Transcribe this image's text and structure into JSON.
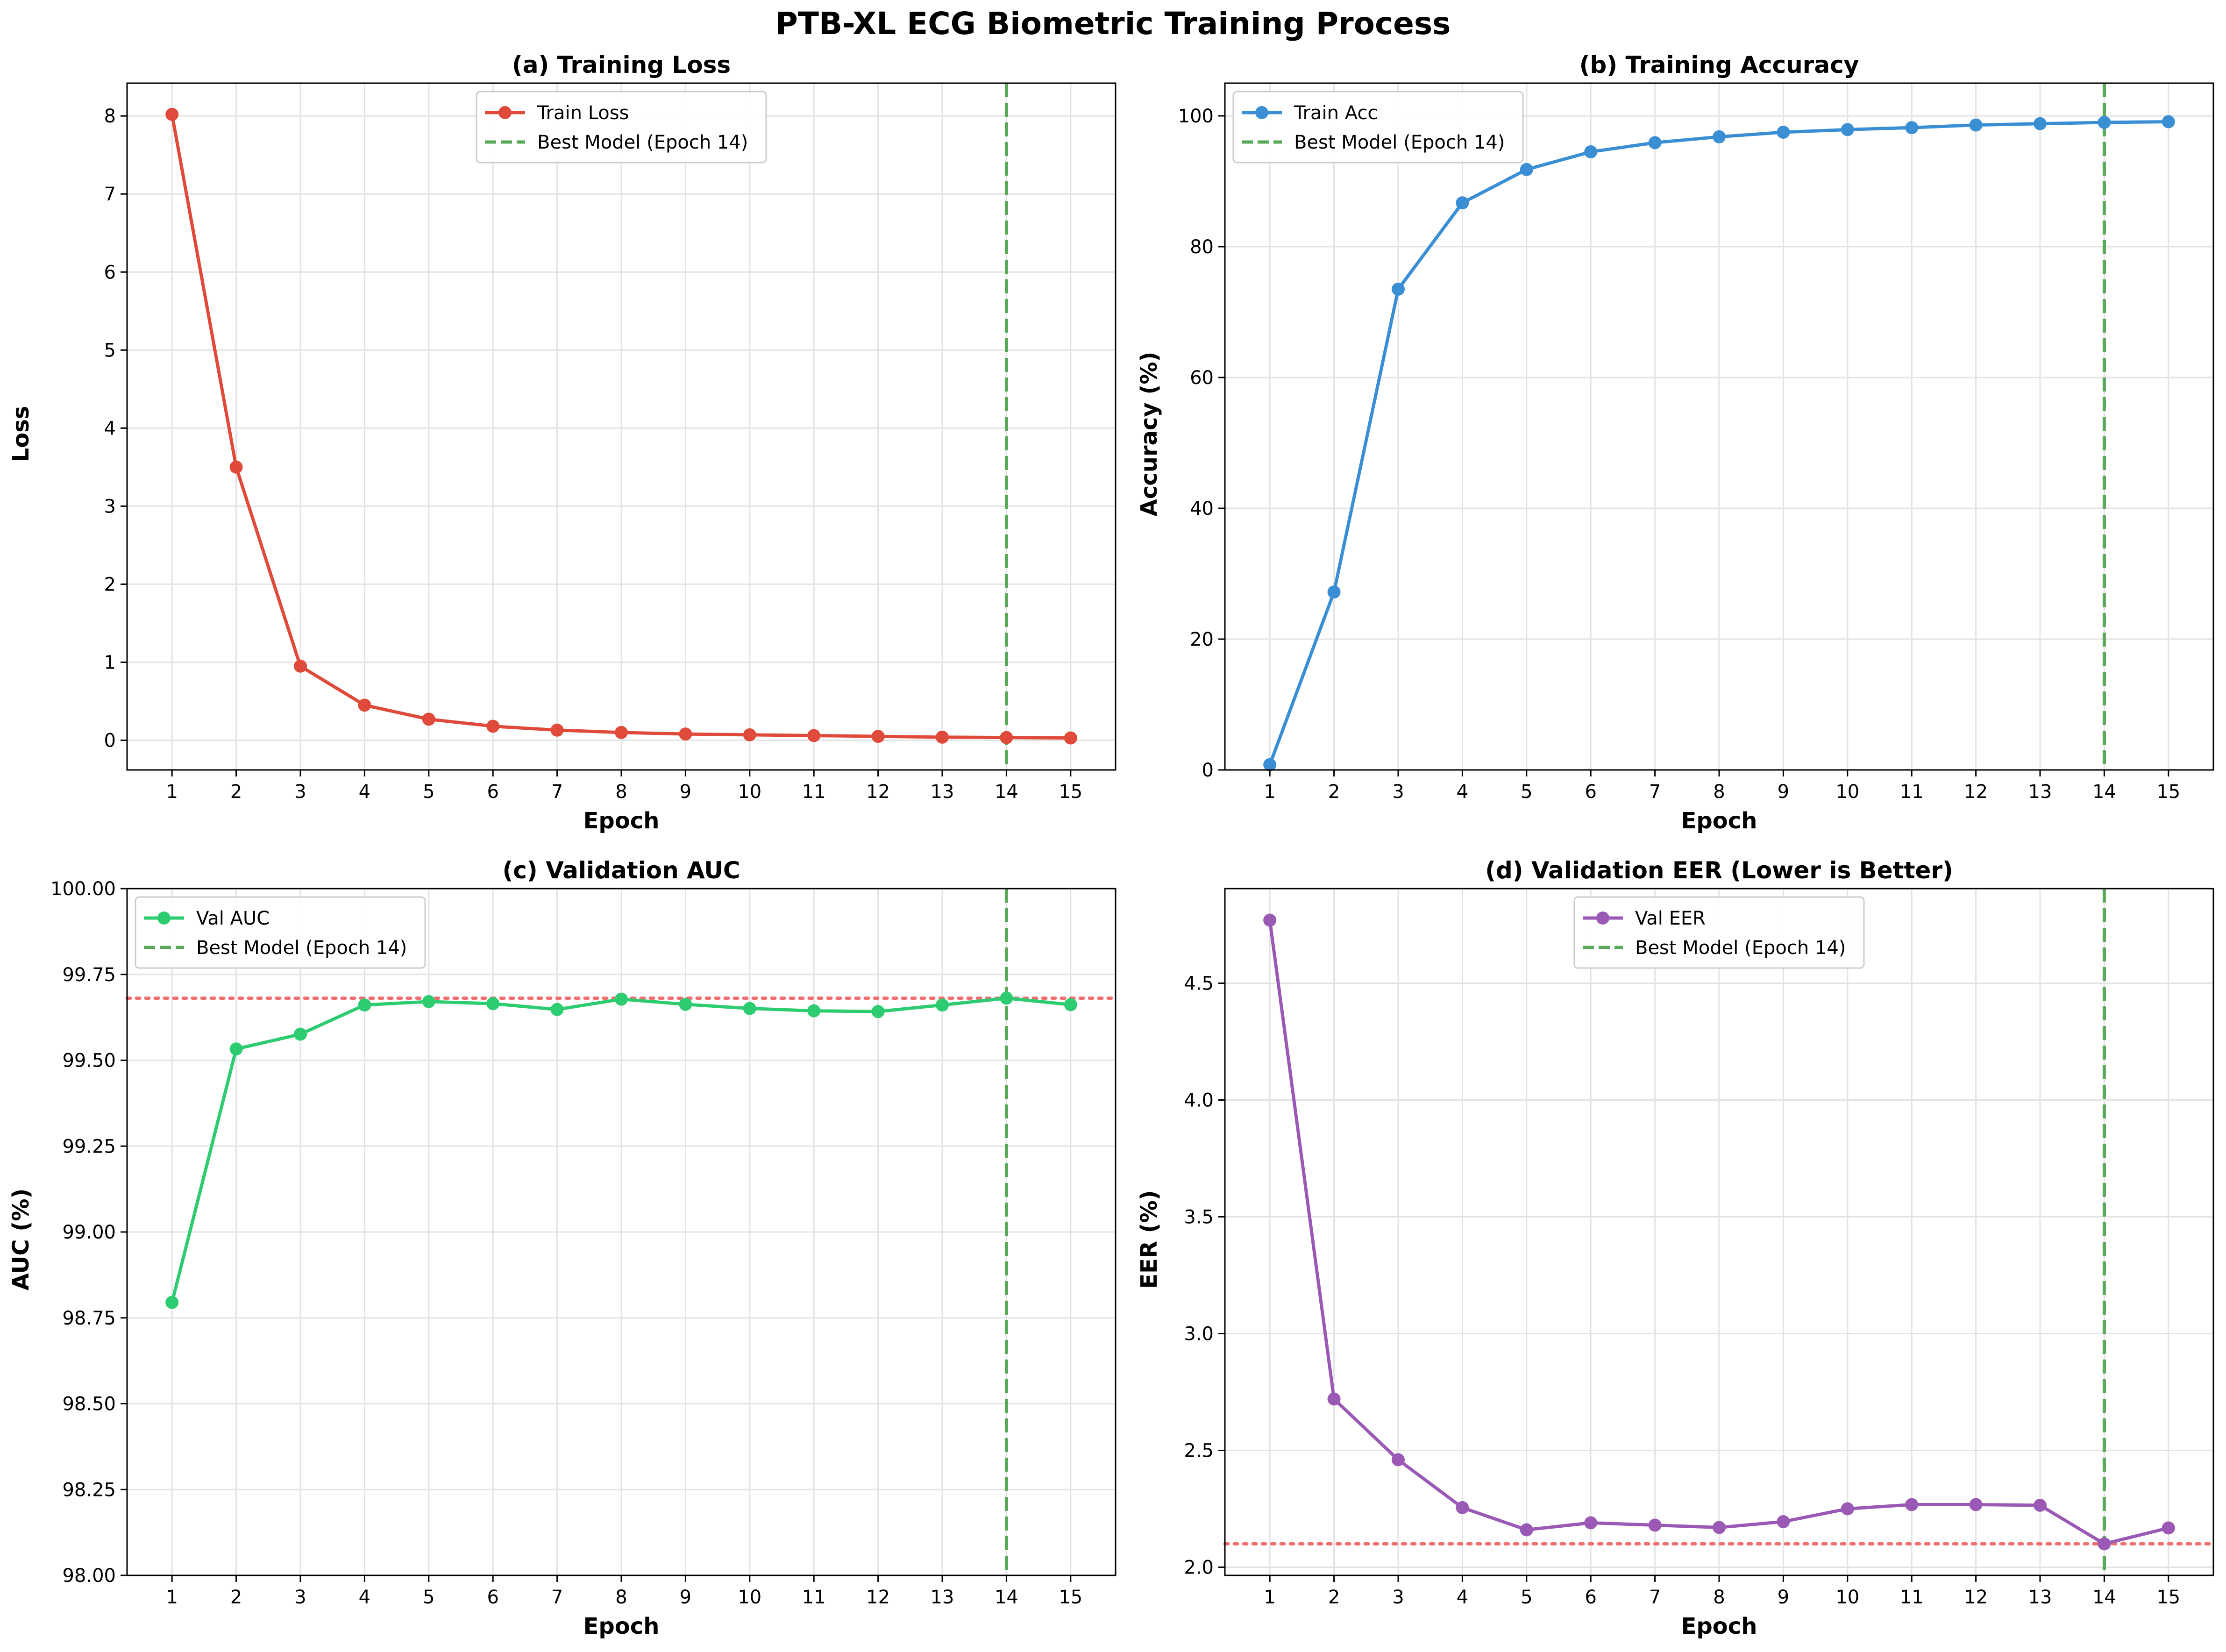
{
  "figure": {
    "title": "PTB-XL ECG Biometric Training Process"
  },
  "chart_data": [
    {
      "type": "line",
      "title": "(a) Training Loss",
      "xlabel": "Epoch",
      "ylabel": "Loss",
      "x": [
        1,
        2,
        3,
        4,
        5,
        6,
        7,
        8,
        9,
        10,
        11,
        12,
        13,
        14,
        15
      ],
      "xlim": [
        0.3,
        15.7
      ],
      "ylim": [
        -0.38,
        8.42
      ],
      "yticks": [
        0,
        1,
        2,
        3,
        4,
        5,
        6,
        7,
        8
      ],
      "ytick_labels": [
        "0",
        "1",
        "2",
        "3",
        "4",
        "5",
        "6",
        "7",
        "8"
      ],
      "grid": true,
      "legend_position": "upper-center",
      "series": [
        {
          "name": "Train Loss",
          "color": "#e04a3a",
          "values": [
            8.02,
            3.5,
            0.95,
            0.45,
            0.27,
            0.18,
            0.13,
            0.1,
            0.08,
            0.07,
            0.06,
            0.05,
            0.04,
            0.035,
            0.03
          ]
        }
      ],
      "best_line": {
        "label": "Best Model (Epoch 14)",
        "x": 14,
        "color": "#5aa85a"
      },
      "reference_line": null
    },
    {
      "type": "line",
      "title": "(b) Training Accuracy",
      "xlabel": "Epoch",
      "ylabel": "Accuracy (%)",
      "x": [
        1,
        2,
        3,
        4,
        5,
        6,
        7,
        8,
        9,
        10,
        11,
        12,
        13,
        14,
        15
      ],
      "xlim": [
        0.3,
        15.7
      ],
      "ylim": [
        0,
        105
      ],
      "yticks": [
        0,
        20,
        40,
        60,
        80,
        100
      ],
      "ytick_labels": [
        "0",
        "20",
        "40",
        "60",
        "80",
        "100"
      ],
      "grid": true,
      "legend_position": "upper-left",
      "series": [
        {
          "name": "Train Acc",
          "color": "#3a8fd4",
          "values": [
            0.8,
            27.2,
            73.5,
            86.7,
            91.8,
            94.5,
            95.9,
            96.8,
            97.5,
            97.9,
            98.2,
            98.6,
            98.8,
            99.0,
            99.1
          ]
        }
      ],
      "best_line": {
        "label": "Best Model (Epoch 14)",
        "x": 14,
        "color": "#5aa85a"
      },
      "reference_line": null
    },
    {
      "type": "line",
      "title": "(c) Validation AUC",
      "xlabel": "Epoch",
      "ylabel": "AUC (%)",
      "x": [
        1,
        2,
        3,
        4,
        5,
        6,
        7,
        8,
        9,
        10,
        11,
        12,
        13,
        14,
        15
      ],
      "xlim": [
        0.3,
        15.7
      ],
      "ylim": [
        98.0,
        100.0
      ],
      "yticks": [
        98.0,
        98.25,
        98.5,
        98.75,
        99.0,
        99.25,
        99.5,
        99.75,
        100.0
      ],
      "ytick_labels": [
        "98.00",
        "98.25",
        "98.50",
        "98.75",
        "99.00",
        "99.25",
        "99.50",
        "99.75",
        "100.00"
      ],
      "grid": true,
      "legend_position": "upper-left",
      "series": [
        {
          "name": "Val AUC",
          "color": "#2ecc71",
          "values": [
            98.795,
            99.533,
            99.576,
            99.661,
            99.671,
            99.665,
            99.648,
            99.678,
            99.663,
            99.651,
            99.644,
            99.642,
            99.661,
            99.681,
            99.662
          ]
        }
      ],
      "best_line": {
        "label": "Best Model (Epoch 14)",
        "x": 14,
        "color": "#5aa85a"
      },
      "reference_line": {
        "y": 99.681,
        "color": "#f07070"
      }
    },
    {
      "type": "line",
      "title": "(d) Validation EER (Lower is Better)",
      "xlabel": "Epoch",
      "ylabel": "EER (%)",
      "x": [
        1,
        2,
        3,
        4,
        5,
        6,
        7,
        8,
        9,
        10,
        11,
        12,
        13,
        14,
        15
      ],
      "xlim": [
        0.3,
        15.7
      ],
      "ylim": [
        1.965,
        4.905
      ],
      "yticks": [
        2.0,
        2.5,
        3.0,
        3.5,
        4.0,
        4.5
      ],
      "ytick_labels": [
        "2.0",
        "2.5",
        "3.0",
        "3.5",
        "4.0",
        "4.5"
      ],
      "grid": true,
      "legend_position": "upper-center",
      "series": [
        {
          "name": "Val EER",
          "color": "#9b59b6",
          "values": [
            4.77,
            2.72,
            2.46,
            2.255,
            2.16,
            2.19,
            2.18,
            2.17,
            2.195,
            2.25,
            2.268,
            2.268,
            2.265,
            2.1,
            2.168
          ]
        }
      ],
      "best_line": {
        "label": "Best Model (Epoch 14)",
        "x": 14,
        "color": "#5aa85a"
      },
      "reference_line": {
        "y": 2.1,
        "color": "#f07070"
      }
    }
  ]
}
